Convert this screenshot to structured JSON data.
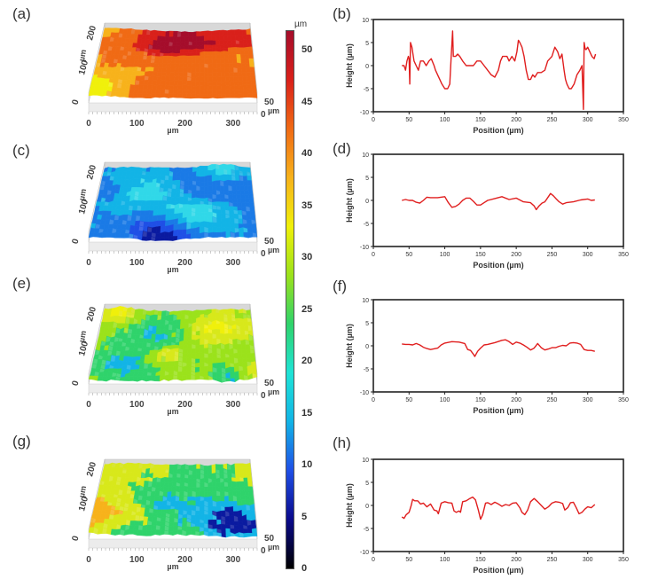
{
  "figure": {
    "panels": {
      "a": {
        "label": "(a)"
      },
      "b": {
        "label": "(b)"
      },
      "c": {
        "label": "(c)"
      },
      "d": {
        "label": "(d)"
      },
      "e": {
        "label": "(e)"
      },
      "f": {
        "label": "(f)"
      },
      "g": {
        "label": "(g)"
      },
      "h": {
        "label": "(h)"
      }
    },
    "surface_axes": {
      "x_ticks": [
        "0",
        "100",
        "200",
        "300"
      ],
      "y_ticks": [
        "0",
        "100",
        "200"
      ],
      "z_ticks": [
        "0",
        "50"
      ],
      "unit": "µm"
    },
    "colorbar": {
      "unit": "µm",
      "min": 0,
      "max": 52,
      "ticks": [
        0,
        5,
        10,
        15,
        20,
        25,
        30,
        35,
        40,
        45,
        50
      ],
      "colors": [
        "#000000",
        "#0a0a8c",
        "#1f4fe6",
        "#12b4e6",
        "#1fe3d6",
        "#2fd36b",
        "#9be21b",
        "#f0f00a",
        "#f7b21b",
        "#f06a14",
        "#d9201a",
        "#a50d2b"
      ]
    },
    "surfaces": [
      {
        "panel": "a",
        "palette": [
          "#a50d2b",
          "#d9201a",
          "#f06a14",
          "#f7b21b",
          "#f0f00a"
        ],
        "mean_level": "high"
      },
      {
        "panel": "c",
        "palette": [
          "#0a1aa0",
          "#1f4fe6",
          "#1a7ae6",
          "#12b4e6",
          "#30d8e8"
        ],
        "mean_level": "low"
      },
      {
        "panel": "e",
        "palette": [
          "#12b4e6",
          "#2fd36b",
          "#9be21b",
          "#d8e81a",
          "#f0f00a"
        ],
        "mean_level": "medium"
      },
      {
        "panel": "g",
        "palette": [
          "#0a1aa0",
          "#12b4e6",
          "#2fd36b",
          "#d8e81a",
          "#f7b21b"
        ],
        "mean_level": "medium-high"
      }
    ]
  },
  "chart_data": [
    {
      "type": "line",
      "panel": "b",
      "title": "",
      "xlabel": "Position (µm)",
      "ylabel": "Height (µm)",
      "xlim": [
        0,
        350
      ],
      "ylim": [
        -10,
        10
      ],
      "xticks": [
        0,
        50,
        100,
        150,
        200,
        250,
        300,
        350
      ],
      "yticks": [
        -10,
        -5,
        0,
        5,
        10
      ],
      "color": "#e01e1e",
      "x": [
        40,
        43,
        45,
        47,
        49,
        50,
        51,
        52,
        54,
        57,
        60,
        63,
        66,
        70,
        74,
        78,
        81,
        85,
        87,
        90,
        93,
        96,
        100,
        104,
        107,
        109,
        111,
        112,
        113,
        115,
        118,
        121,
        125,
        130,
        135,
        140,
        145,
        150,
        155,
        160,
        165,
        170,
        175,
        178,
        181,
        184,
        187,
        190,
        194,
        198,
        201,
        203,
        205,
        208,
        211,
        214,
        217,
        220,
        223,
        226,
        230,
        235,
        240,
        244,
        247,
        250,
        254,
        258,
        261,
        264,
        267,
        269,
        271,
        274,
        277,
        281,
        285,
        289,
        292,
        294,
        295,
        296,
        297,
        298,
        300,
        303,
        306,
        309,
        311
      ],
      "y": [
        0,
        0,
        -1,
        1,
        2,
        1.5,
        -4,
        5,
        4,
        1,
        0,
        -1,
        1,
        1,
        0,
        1,
        1.5,
        0,
        -1,
        -2,
        -3,
        -4,
        -5,
        -5,
        -4,
        2,
        7.5,
        2,
        2,
        2,
        2.5,
        2,
        1,
        0,
        0,
        0,
        1,
        1,
        0,
        -1,
        -2,
        -2.5,
        -1,
        1,
        2,
        2,
        2,
        1,
        2,
        1,
        3,
        5.5,
        5,
        4,
        2,
        -1,
        -3,
        -3,
        -2,
        -2.5,
        -1.5,
        -1.5,
        -1,
        1,
        1.5,
        2,
        4,
        3,
        1.5,
        2.5,
        -1,
        -3,
        -4,
        -5,
        -5,
        -4,
        -2,
        -1,
        0,
        -9.5,
        5,
        4,
        3.5,
        3.5,
        4,
        3,
        2,
        1.5,
        2.5
      ]
    },
    {
      "type": "line",
      "panel": "d",
      "title": "",
      "xlabel": "Position (µm)",
      "ylabel": "Height (µm)",
      "xlim": [
        0,
        350
      ],
      "ylim": [
        -10,
        10
      ],
      "xticks": [
        0,
        50,
        100,
        150,
        200,
        250,
        300,
        350
      ],
      "yticks": [
        -10,
        -5,
        0,
        5,
        10
      ],
      "color": "#e01e1e",
      "x": [
        40,
        45,
        50,
        55,
        60,
        65,
        70,
        75,
        80,
        90,
        100,
        105,
        110,
        115,
        120,
        125,
        130,
        135,
        140,
        145,
        150,
        155,
        160,
        170,
        180,
        190,
        200,
        210,
        220,
        225,
        228,
        232,
        236,
        240,
        245,
        248,
        252,
        256,
        260,
        265,
        270,
        280,
        290,
        300,
        305,
        310
      ],
      "y": [
        0,
        0.2,
        0,
        0,
        -0.4,
        -0.6,
        0,
        0.7,
        0.6,
        0.6,
        0.8,
        -0.5,
        -1.5,
        -1.3,
        -0.8,
        0,
        0.5,
        0.5,
        -0.2,
        -1,
        -1,
        -0.5,
        0,
        0.4,
        0.8,
        0.2,
        0.5,
        -0.3,
        -0.5,
        -1.2,
        -2,
        -1.2,
        -0.6,
        -0.3,
        0.8,
        1.5,
        1,
        0.3,
        -0.3,
        -0.8,
        -0.5,
        -0.3,
        0.1,
        0.3,
        0,
        0.1
      ]
    },
    {
      "type": "line",
      "panel": "f",
      "title": "",
      "xlabel": "Position (µm)",
      "ylabel": "Height (µm)",
      "xlim": [
        0,
        350
      ],
      "ylim": [
        -10,
        10
      ],
      "xticks": [
        0,
        50,
        100,
        150,
        200,
        250,
        300,
        350
      ],
      "yticks": [
        -10,
        -5,
        0,
        5,
        10
      ],
      "color": "#e01e1e",
      "x": [
        40,
        45,
        50,
        55,
        60,
        65,
        70,
        75,
        80,
        90,
        95,
        100,
        110,
        120,
        128,
        132,
        136,
        140,
        142,
        146,
        150,
        155,
        160,
        170,
        180,
        185,
        190,
        195,
        200,
        205,
        210,
        215,
        220,
        225,
        230,
        235,
        240,
        245,
        250,
        255,
        260,
        265,
        270,
        275,
        280,
        285,
        290,
        295,
        300,
        305,
        310
      ],
      "y": [
        0.4,
        0.3,
        0.3,
        0.2,
        0.5,
        0.2,
        -0.3,
        -0.6,
        -0.8,
        -0.5,
        0.2,
        0.6,
        0.9,
        0.8,
        0.5,
        -0.8,
        -1,
        -1.8,
        -2.3,
        -1.2,
        -0.5,
        0.2,
        0.3,
        0.7,
        1.2,
        1.3,
        0.9,
        0.3,
        0.8,
        0.6,
        0.2,
        -0.3,
        -0.9,
        -0.5,
        0.5,
        -0.4,
        -0.9,
        -0.7,
        -0.4,
        -0.4,
        -0.1,
        0.1,
        0,
        0.6,
        0.7,
        0.6,
        0.3,
        -0.8,
        -1,
        -1,
        -1.2
      ]
    },
    {
      "type": "line",
      "panel": "h",
      "title": "",
      "xlabel": "Position (µm)",
      "ylabel": "Height (µm)",
      "xlim": [
        0,
        350
      ],
      "ylim": [
        -10,
        10
      ],
      "xticks": [
        0,
        50,
        100,
        150,
        200,
        250,
        300,
        350
      ],
      "yticks": [
        -10,
        -5,
        0,
        5,
        10
      ],
      "color": "#e01e1e",
      "x": [
        40,
        43,
        46,
        50,
        53,
        55,
        58,
        62,
        66,
        70,
        75,
        80,
        85,
        89,
        91,
        95,
        100,
        105,
        110,
        113,
        116,
        120,
        122,
        125,
        130,
        135,
        139,
        143,
        147,
        150,
        153,
        157,
        160,
        165,
        170,
        175,
        180,
        185,
        190,
        195,
        200,
        205,
        208,
        212,
        216,
        220,
        225,
        230,
        235,
        240,
        245,
        250,
        255,
        260,
        265,
        268,
        272,
        276,
        280,
        284,
        288,
        292,
        296,
        300,
        305,
        310
      ],
      "y": [
        -2.5,
        -2.8,
        -2,
        -1.5,
        0,
        1.3,
        1,
        1,
        0.3,
        0.5,
        -0.3,
        0.3,
        -1,
        -1.2,
        -1.8,
        0.5,
        0.8,
        0.6,
        0.5,
        -1.2,
        -1.5,
        -1.2,
        -1.5,
        0.8,
        1,
        1.5,
        1.8,
        1.2,
        -1,
        -3,
        -2,
        0.5,
        0.6,
        0.2,
        0.7,
        0.3,
        -0.2,
        0.2,
        0,
        0.5,
        0.6,
        -0.5,
        -1.5,
        -2,
        -1,
        0.8,
        1.5,
        0.8,
        0,
        -0.8,
        -0.3,
        0.5,
        0.8,
        0.7,
        0.4,
        -1,
        -0.5,
        0.6,
        0.7,
        -0.5,
        -1.8,
        -1.5,
        -0.8,
        -0.3,
        -0.5,
        0.2
      ]
    }
  ]
}
